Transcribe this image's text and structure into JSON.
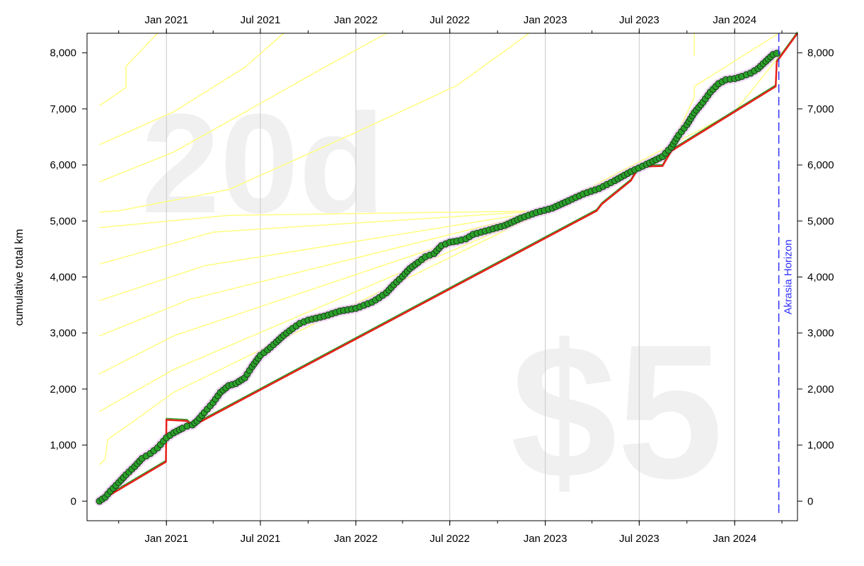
{
  "chart_data": {
    "type": "line",
    "title": "",
    "xlabel": "",
    "ylabel": "cumulative total km",
    "watermarks": {
      "days": "20d",
      "pledge": "$5"
    },
    "horizon": {
      "label": "Akrasia Horizon",
      "date": "2024-03-26"
    },
    "x_range": [
      "2020-08-01",
      "2024-05-01"
    ],
    "y_range": [
      -350,
      8350
    ],
    "x_ticks": [
      {
        "date": "2021-01-01",
        "label": "Jan 2021"
      },
      {
        "date": "2021-07-01",
        "label": "Jul 2021"
      },
      {
        "date": "2022-01-01",
        "label": "Jan 2022"
      },
      {
        "date": "2022-07-01",
        "label": "Jul 2022"
      },
      {
        "date": "2023-01-01",
        "label": "Jan 2023"
      },
      {
        "date": "2023-07-01",
        "label": "Jul 2023"
      },
      {
        "date": "2024-01-01",
        "label": "Jan 2024"
      }
    ],
    "y_ticks": [
      {
        "value": 0,
        "label": "0"
      },
      {
        "value": 1000,
        "label": "1,000"
      },
      {
        "value": 2000,
        "label": "2,000"
      },
      {
        "value": 3000,
        "label": "3,000"
      },
      {
        "value": 4000,
        "label": "4,000"
      },
      {
        "value": 5000,
        "label": "5,000"
      },
      {
        "value": 6000,
        "label": "6,000"
      },
      {
        "value": 7000,
        "label": "7,000"
      },
      {
        "value": 8000,
        "label": "8,000"
      }
    ],
    "grid": {
      "vertical": true,
      "horizontal": false
    },
    "colors": {
      "road": "#e8201a",
      "road_green": "#2a9a2a",
      "guide": "#ffff80",
      "dot_fill": "#2aa12a",
      "dot_stroke": "#1a3a1a",
      "halo": "#e9c8ef",
      "horizon": "#3030ff",
      "gridline": "#c8c8c8",
      "watermark": "#f0f0f0"
    },
    "series": [
      {
        "kind": "road",
        "points": [
          [
            "2020-08-25",
            0
          ],
          [
            "2020-12-31",
            700
          ],
          [
            "2020-12-31",
            720
          ],
          [
            "2021-01-01",
            1450
          ],
          [
            "2021-02-10",
            1430
          ],
          [
            "2021-02-20",
            1340
          ],
          [
            "2023-04-10",
            5180
          ],
          [
            "2023-04-20",
            5300
          ],
          [
            "2023-06-15",
            5720
          ],
          [
            "2023-07-01",
            5970
          ],
          [
            "2023-08-15",
            5980
          ],
          [
            "2023-09-01",
            6250
          ],
          [
            "2024-03-20",
            7400
          ],
          [
            "2024-03-22",
            7840
          ],
          [
            "2024-05-01",
            8350
          ]
        ]
      },
      {
        "kind": "data",
        "points": [
          [
            "2020-08-25",
            0
          ],
          [
            "2020-09-05",
            70
          ],
          [
            "2020-09-15",
            180
          ],
          [
            "2020-10-01",
            330
          ],
          [
            "2020-10-15",
            470
          ],
          [
            "2020-11-01",
            620
          ],
          [
            "2020-11-15",
            760
          ],
          [
            "2020-12-01",
            850
          ],
          [
            "2020-12-15",
            950
          ],
          [
            "2021-01-01",
            1130
          ],
          [
            "2021-01-15",
            1220
          ],
          [
            "2021-02-01",
            1300
          ],
          [
            "2021-02-10",
            1340
          ],
          [
            "2021-02-20",
            1360
          ],
          [
            "2021-03-01",
            1430
          ],
          [
            "2021-03-15",
            1580
          ],
          [
            "2021-04-01",
            1760
          ],
          [
            "2021-04-15",
            1940
          ],
          [
            "2021-05-01",
            2060
          ],
          [
            "2021-05-15",
            2100
          ],
          [
            "2021-06-01",
            2200
          ],
          [
            "2021-06-15",
            2400
          ],
          [
            "2021-07-01",
            2600
          ],
          [
            "2021-07-15",
            2700
          ],
          [
            "2021-08-01",
            2840
          ],
          [
            "2021-08-15",
            2960
          ],
          [
            "2021-09-01",
            3080
          ],
          [
            "2021-09-15",
            3170
          ],
          [
            "2021-10-01",
            3230
          ],
          [
            "2021-11-01",
            3300
          ],
          [
            "2021-12-01",
            3390
          ],
          [
            "2022-01-01",
            3440
          ],
          [
            "2022-02-01",
            3550
          ],
          [
            "2022-02-15",
            3630
          ],
          [
            "2022-03-01",
            3720
          ],
          [
            "2022-03-15",
            3860
          ],
          [
            "2022-04-01",
            4010
          ],
          [
            "2022-04-15",
            4150
          ],
          [
            "2022-05-01",
            4260
          ],
          [
            "2022-05-15",
            4360
          ],
          [
            "2022-06-01",
            4420
          ],
          [
            "2022-06-15",
            4560
          ],
          [
            "2022-07-01",
            4620
          ],
          [
            "2022-07-15",
            4640
          ],
          [
            "2022-08-01",
            4680
          ],
          [
            "2022-08-15",
            4760
          ],
          [
            "2022-09-15",
            4840
          ],
          [
            "2022-10-15",
            4920
          ],
          [
            "2022-11-15",
            5050
          ],
          [
            "2022-12-15",
            5150
          ],
          [
            "2023-01-15",
            5230
          ],
          [
            "2023-02-15",
            5360
          ],
          [
            "2023-03-15",
            5480
          ],
          [
            "2023-04-15",
            5580
          ],
          [
            "2023-05-15",
            5720
          ],
          [
            "2023-06-15",
            5880
          ],
          [
            "2023-07-15",
            6010
          ],
          [
            "2023-08-15",
            6150
          ],
          [
            "2023-09-01",
            6320
          ],
          [
            "2023-09-15",
            6530
          ],
          [
            "2023-10-01",
            6720
          ],
          [
            "2023-10-15",
            6930
          ],
          [
            "2023-11-01",
            7120
          ],
          [
            "2023-11-15",
            7300
          ],
          [
            "2023-12-01",
            7450
          ],
          [
            "2023-12-15",
            7520
          ],
          [
            "2024-01-01",
            7540
          ],
          [
            "2024-01-15",
            7580
          ],
          [
            "2024-02-01",
            7640
          ],
          [
            "2024-02-15",
            7720
          ],
          [
            "2024-03-01",
            7850
          ],
          [
            "2024-03-15",
            7970
          ],
          [
            "2024-03-22",
            7990
          ]
        ]
      },
      {
        "kind": "guides",
        "lines": [
          [
            [
              "2020-08-25",
              650
            ],
            [
              "2020-09-05",
              750
            ],
            [
              "2020-09-10",
              1100
            ],
            [
              "2020-10-15",
              1330
            ],
            [
              "2021-01-15",
              1940
            ],
            [
              "2023-01-01",
              5180
            ],
            [
              "2024-01-01",
              6950
            ],
            [
              "2024-05-01",
              8350
            ]
          ],
          [
            [
              "2020-08-25",
              1600
            ],
            [
              "2021-01-15",
              2350
            ],
            [
              "2023-01-01",
              5180
            ]
          ],
          [
            [
              "2020-08-25",
              2270
            ],
            [
              "2021-01-15",
              2950
            ],
            [
              "2023-01-01",
              5180
            ]
          ],
          [
            [
              "2020-08-25",
              2950
            ],
            [
              "2021-02-15",
              3600
            ],
            [
              "2023-01-01",
              5180
            ]
          ],
          [
            [
              "2020-08-25",
              3580
            ],
            [
              "2021-03-15",
              4200
            ],
            [
              "2023-01-01",
              5180
            ]
          ],
          [
            [
              "2020-08-25",
              4230
            ],
            [
              "2021-04-01",
              4800
            ],
            [
              "2023-01-01",
              5180
            ]
          ],
          [
            [
              "2020-08-25",
              4880
            ],
            [
              "2021-05-01",
              5100
            ],
            [
              "2023-01-01",
              5180
            ]
          ],
          [
            [
              "2020-08-25",
              5160
            ],
            [
              "2020-10-01",
              5180
            ],
            [
              "2021-05-01",
              5560
            ],
            [
              "2022-01-01",
              6580
            ],
            [
              "2022-07-15",
              7420
            ],
            [
              "2022-12-01",
              8350
            ]
          ],
          [
            [
              "2020-08-25",
              5700
            ],
            [
              "2021-01-15",
              6230
            ],
            [
              "2021-06-01",
              6940
            ],
            [
              "2021-11-01",
              7740
            ],
            [
              "2022-03-01",
              8350
            ]
          ],
          [
            [
              "2020-08-25",
              6360
            ],
            [
              "2021-01-15",
              6950
            ],
            [
              "2021-06-01",
              7740
            ],
            [
              "2021-08-15",
              8350
            ]
          ],
          [
            [
              "2020-08-25",
              7060
            ],
            [
              "2020-10-15",
              7380
            ],
            [
              "2020-10-15",
              7760
            ],
            [
              "2020-12-15",
              8350
            ]
          ],
          [
            [
              "2023-09-01",
              6350
            ],
            [
              "2023-10-15",
              7200
            ],
            [
              "2023-10-15",
              7400
            ],
            [
              "2024-03-26",
              8350
            ]
          ],
          [
            [
              "2023-10-15",
              7950
            ],
            [
              "2023-10-15",
              8350
            ]
          ]
        ]
      }
    ]
  }
}
